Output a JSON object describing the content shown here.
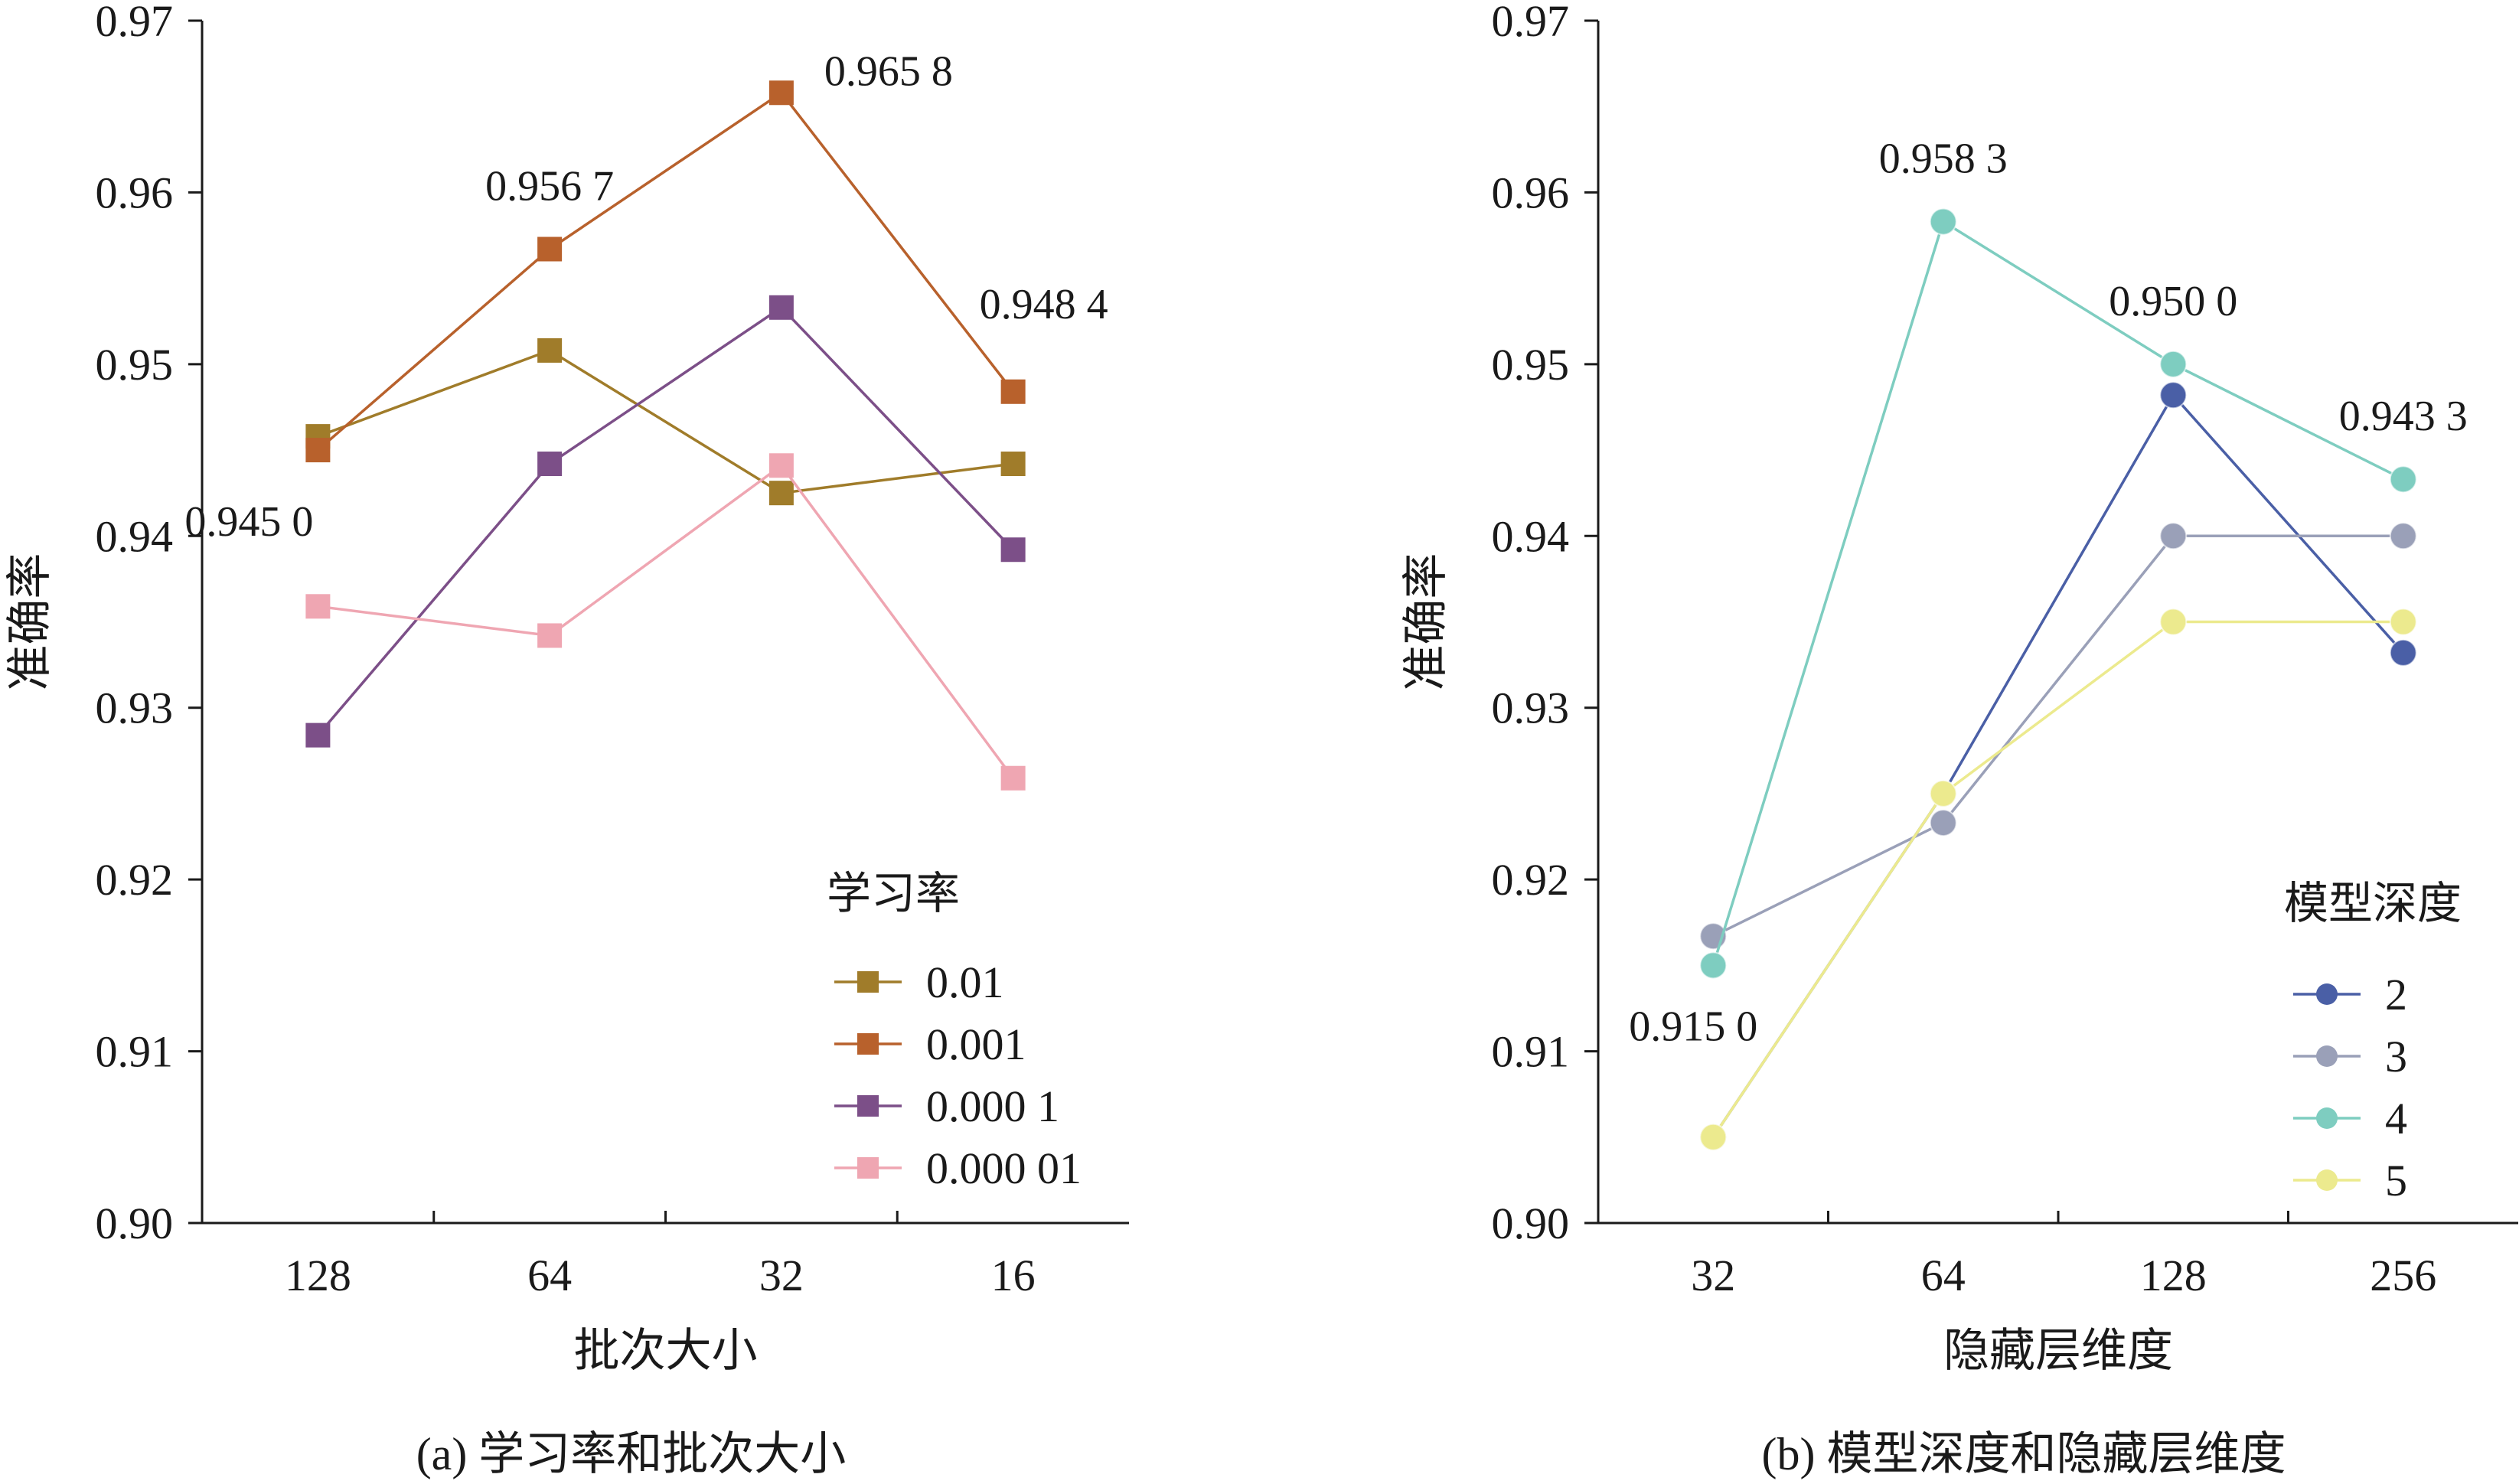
{
  "chart_data": [
    {
      "type": "line",
      "caption": "(a) 学习率和批次大小",
      "xlabel": "批次大小",
      "ylabel": "准确率",
      "categories": [
        "128",
        "64",
        "32",
        "16"
      ],
      "ylim": [
        0.9,
        0.97
      ],
      "yticks": [
        "0.90",
        "0.91",
        "0.92",
        "0.93",
        "0.94",
        "0.95",
        "0.96",
        "0.97"
      ],
      "marker": "square",
      "legend": {
        "title": "学习率",
        "position": "bottom-right"
      },
      "series": [
        {
          "name": "0.01",
          "color": "#a07c2a",
          "values": [
            0.9458,
            0.9508,
            0.9425,
            0.9442
          ]
        },
        {
          "name": "0.001",
          "color": "#b8612c",
          "values": [
            0.945,
            0.9567,
            0.9658,
            0.9484
          ]
        },
        {
          "name": "0.000 1",
          "color": "#7c4f88",
          "values": [
            0.9284,
            0.9442,
            0.9533,
            0.9392
          ]
        },
        {
          "name": "0.000 01",
          "color": "#efa6b2",
          "values": [
            0.9359,
            0.9342,
            0.9441,
            0.9259
          ]
        }
      ],
      "annotations": [
        {
          "text": "0.945 0",
          "category": "128",
          "value": 0.945,
          "anchor": "below-left"
        },
        {
          "text": "0.956 7",
          "category": "64",
          "value": 0.9567,
          "anchor": "above"
        },
        {
          "text": "0.965  8",
          "category": "32",
          "value": 0.9658,
          "anchor": "right"
        },
        {
          "text": "0.948 4",
          "category": "16",
          "value": 0.9484,
          "anchor": "above-right"
        }
      ]
    },
    {
      "type": "line",
      "caption": "(b) 模型深度和隐藏层维度",
      "xlabel": "隐藏层维度",
      "ylabel": "准确率",
      "categories": [
        "32",
        "64",
        "128",
        "256"
      ],
      "ylim": [
        0.9,
        0.97
      ],
      "yticks": [
        "0.90",
        "0.91",
        "0.92",
        "0.93",
        "0.94",
        "0.95",
        "0.96",
        "0.97"
      ],
      "marker": "circle",
      "legend": {
        "title": "模型深度",
        "position": "bottom-right"
      },
      "series": [
        {
          "name": "2",
          "color": "#4a5fa6",
          "values": [
            0.905,
            0.925,
            0.9482,
            0.9332
          ]
        },
        {
          "name": "3",
          "color": "#9aa0b8",
          "values": [
            0.9167,
            0.9233,
            0.94,
            0.94
          ]
        },
        {
          "name": "4",
          "color": "#7ecdc0",
          "values": [
            0.915,
            0.9583,
            0.95,
            0.9433
          ]
        },
        {
          "name": "5",
          "color": "#ecea8e",
          "values": [
            0.905,
            0.925,
            0.935,
            0.935
          ]
        }
      ],
      "annotations": [
        {
          "text": "0.915 0",
          "category": "32",
          "value": 0.915,
          "anchor": "below"
        },
        {
          "text": "0.958 3",
          "category": "64",
          "value": 0.9583,
          "anchor": "above"
        },
        {
          "text": "0.950 0",
          "category": "128",
          "value": 0.95,
          "anchor": "above"
        },
        {
          "text": "0.943 3",
          "category": "256",
          "value": 0.9433,
          "anchor": "above"
        }
      ]
    }
  ]
}
